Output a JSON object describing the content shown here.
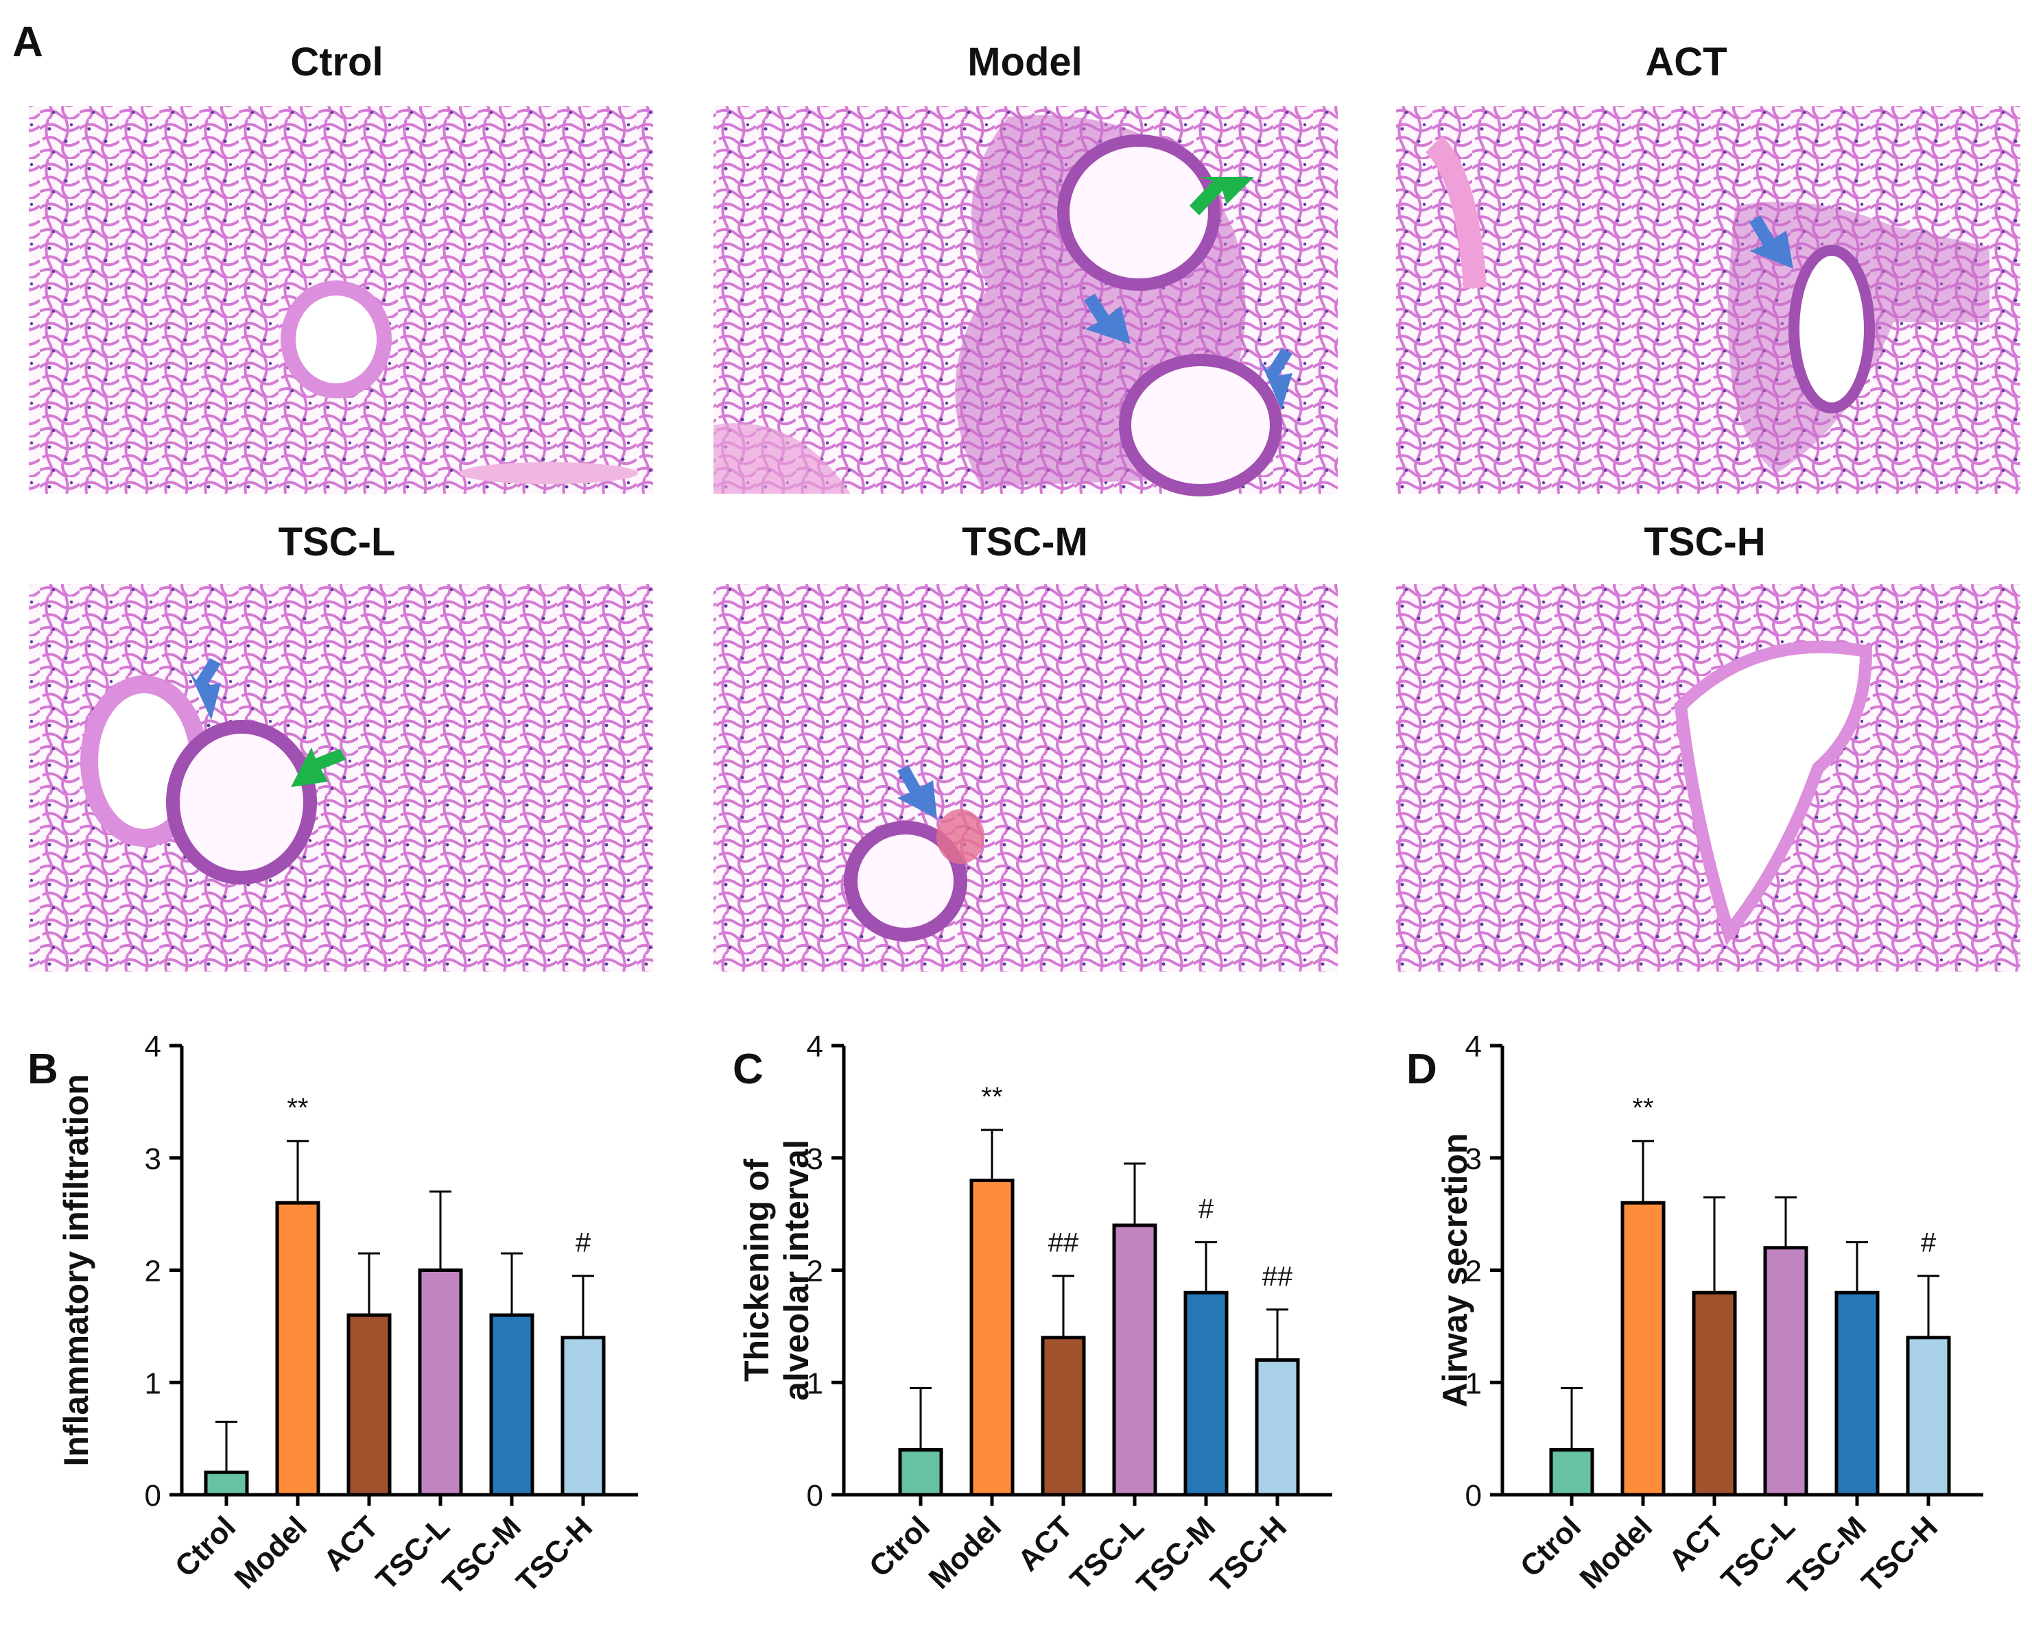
{
  "figure": {
    "panel_a_letter": "A",
    "micrographs": [
      {
        "title": "Ctrol",
        "arrows": []
      },
      {
        "title": "Model",
        "arrows": [
          "green",
          "blue",
          "blue"
        ]
      },
      {
        "title": "ACT",
        "arrows": [
          "blue"
        ]
      },
      {
        "title": "TSC-L",
        "arrows": [
          "blue",
          "green"
        ]
      },
      {
        "title": "TSC-M",
        "arrows": [
          "blue"
        ]
      },
      {
        "title": "TSC-H",
        "arrows": []
      }
    ]
  },
  "colors": {
    "Ctrol": "#66c2a0",
    "Model": "#ff8c3a",
    "ACT": "#a0522d",
    "TSC-L": "#c084c0",
    "TSC-M": "#2878b8",
    "TSC-H": "#a8d0e6",
    "green_arrow": "#1db44a",
    "blue_arrow": "#4a7fd4",
    "tissue_bg": "#f6e8f6",
    "tissue_stroke": "#d27ad2"
  },
  "chart_data": [
    {
      "type": "bar",
      "panel": "B",
      "ylabel": "Inflammatory infiltration",
      "categories": [
        "Ctrol",
        "Model",
        "ACT",
        "TSC-L",
        "TSC-M",
        "TSC-H"
      ],
      "values": [
        0.2,
        2.6,
        1.6,
        2.0,
        1.6,
        1.4
      ],
      "errors": [
        0.45,
        0.55,
        0.55,
        0.7,
        0.55,
        0.55
      ],
      "annotations": [
        "",
        "**",
        "",
        "",
        "",
        "#"
      ],
      "ylim": [
        0,
        4
      ],
      "yticks": [
        "0",
        "1",
        "2",
        "3",
        "4"
      ]
    },
    {
      "type": "bar",
      "panel": "C",
      "ylabel": "Thickening of alveolar interval",
      "ylabel_lines": [
        "Thickening of",
        "alveolar interval"
      ],
      "categories": [
        "Ctrol",
        "Model",
        "ACT",
        "TSC-L",
        "TSC-M",
        "TSC-H"
      ],
      "values": [
        0.4,
        2.8,
        1.4,
        2.4,
        1.8,
        1.2
      ],
      "errors": [
        0.55,
        0.45,
        0.55,
        0.55,
        0.45,
        0.45
      ],
      "annotations": [
        "",
        "**",
        "##",
        "",
        "#",
        "##"
      ],
      "ylim": [
        0,
        4
      ],
      "yticks": [
        "0",
        "1",
        "2",
        "3",
        "4"
      ]
    },
    {
      "type": "bar",
      "panel": "D",
      "ylabel": "Airway secretion",
      "categories": [
        "Ctrol",
        "Model",
        "ACT",
        "TSC-L",
        "TSC-M",
        "TSC-H"
      ],
      "values": [
        0.4,
        2.6,
        1.8,
        2.2,
        1.8,
        1.4
      ],
      "errors": [
        0.55,
        0.55,
        0.85,
        0.45,
        0.45,
        0.55
      ],
      "annotations": [
        "",
        "**",
        "",
        "",
        "",
        "#"
      ],
      "ylim": [
        0,
        4
      ],
      "yticks": [
        "0",
        "1",
        "2",
        "3",
        "4"
      ]
    }
  ]
}
